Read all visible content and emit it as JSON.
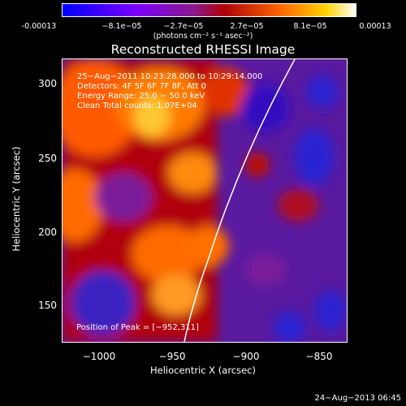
{
  "colorbar": {
    "ticks": [
      "-0.00013",
      "−8.1e−05",
      "−2.7e−05",
      "2.7e−05",
      "8.1e−05",
      "0.00013"
    ],
    "units": "(photons cm⁻² s⁻¹ asec⁻²)"
  },
  "plot": {
    "title": "Reconstructed RHESSI Image",
    "xlabel": "Heliocentric X (arcsec)",
    "ylabel": "Heliocentric Y (arcsec)",
    "xticks": [
      "−1000",
      "−950",
      "−900",
      "−850"
    ],
    "yticks": [
      "300",
      "250",
      "200",
      "150"
    ],
    "info": [
      "25−Aug−2011 10:23:28.000 to 10:29:14.000",
      "Detectors: 4F 5F 6F 7F 8F, Att 0",
      "Energy Range: 25.0 − 50.0 keV",
      "Clean    Total counts: 1.07E+04"
    ],
    "peak": "Position of Peak = [−952,311]"
  },
  "datestamp": "24−Aug−2013 06:45",
  "chart_data": {
    "type": "heatmap",
    "title": "Reconstructed RHESSI Image",
    "xlabel": "Heliocentric X (arcsec)",
    "ylabel": "Heliocentric Y (arcsec)",
    "xlim": [
      -1022,
      -828
    ],
    "ylim": [
      122,
      318
    ],
    "colorbar_range": [
      -0.00013,
      0.00013
    ],
    "peak": [
      -952,
      311
    ]
  }
}
